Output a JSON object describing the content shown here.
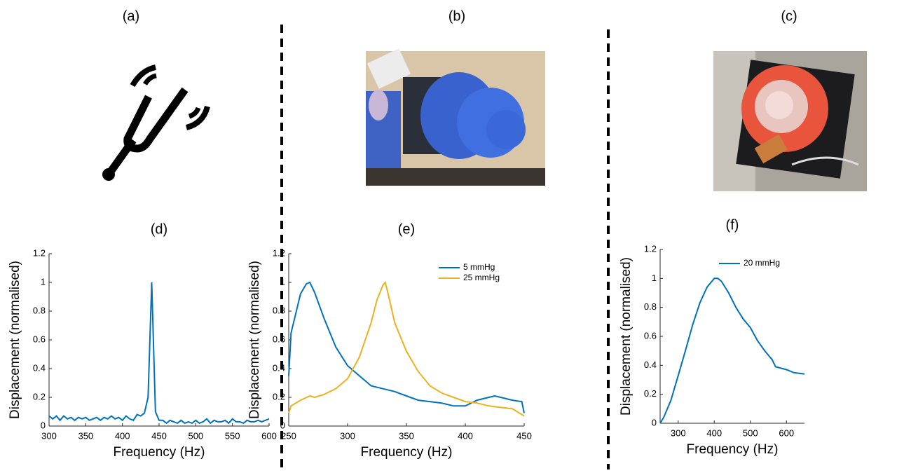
{
  "panel_labels": [
    "(a)",
    "(b)",
    "(c)"
  ],
  "chart_data": [
    {
      "type": "line",
      "title": "(d)",
      "x_label": "Frequency (Hz)",
      "y_label": "Displacement (normalised)",
      "x": [
        300,
        305,
        310,
        315,
        320,
        325,
        330,
        335,
        340,
        345,
        350,
        355,
        360,
        365,
        370,
        375,
        380,
        385,
        390,
        395,
        400,
        405,
        410,
        415,
        420,
        425,
        430,
        435,
        440,
        445,
        450,
        455,
        460,
        465,
        470,
        475,
        480,
        485,
        490,
        495,
        500,
        505,
        510,
        515,
        520,
        525,
        530,
        535,
        540,
        545,
        550,
        555,
        560,
        565,
        570,
        575,
        580,
        585,
        590,
        595,
        600
      ],
      "values": [
        0.07,
        0.05,
        0.07,
        0.04,
        0.07,
        0.05,
        0.06,
        0.04,
        0.06,
        0.05,
        0.06,
        0.04,
        0.05,
        0.06,
        0.04,
        0.06,
        0.05,
        0.07,
        0.05,
        0.06,
        0.04,
        0.07,
        0.05,
        0.04,
        0.08,
        0.07,
        0.09,
        0.2,
        1.0,
        0.1,
        0.04,
        0.04,
        0.02,
        0.04,
        0.03,
        0.02,
        0.04,
        0.02,
        0.03,
        0.02,
        0.04,
        0.02,
        0.03,
        0.05,
        0.02,
        0.04,
        0.03,
        0.03,
        0.04,
        0.02,
        0.05,
        0.03,
        0.03,
        0.02,
        0.04,
        0.03,
        0.03,
        0.04,
        0.03,
        0.04,
        0.05
      ],
      "color": "#0072bd",
      "xlim": [
        300,
        600
      ],
      "xticks": [
        300,
        350,
        400,
        450,
        500,
        550,
        600
      ],
      "ylim": [
        0,
        1.2
      ],
      "yticks": [
        0,
        0.2,
        0.4,
        0.6,
        0.8,
        1,
        1.2
      ]
    },
    {
      "type": "line",
      "title": "(e)",
      "x_label": "Frequency (Hz)",
      "y_label": "Displacement (normalised)",
      "series": [
        {
          "name": "5 mmHg",
          "color": "#0072bd",
          "x": [
            250,
            252,
            255,
            260,
            265,
            268,
            272,
            280,
            290,
            300,
            310,
            320,
            330,
            340,
            350,
            360,
            370,
            380,
            390,
            400,
            410,
            420,
            425,
            430,
            440,
            448,
            450
          ],
          "values": [
            0.35,
            0.65,
            0.75,
            0.92,
            0.99,
            1.0,
            0.93,
            0.75,
            0.55,
            0.42,
            0.35,
            0.28,
            0.26,
            0.24,
            0.21,
            0.18,
            0.17,
            0.16,
            0.14,
            0.14,
            0.18,
            0.2,
            0.21,
            0.2,
            0.18,
            0.17,
            0.09
          ]
        },
        {
          "name": "25 mmHg",
          "color": "#edb120",
          "x": [
            250,
            252,
            260,
            268,
            272,
            280,
            290,
            300,
            310,
            320,
            325,
            330,
            332,
            335,
            340,
            350,
            360,
            370,
            380,
            390,
            400,
            410,
            420,
            430,
            440,
            450
          ],
          "values": [
            0.09,
            0.14,
            0.18,
            0.21,
            0.2,
            0.22,
            0.26,
            0.33,
            0.48,
            0.72,
            0.88,
            0.98,
            1.0,
            0.9,
            0.72,
            0.52,
            0.38,
            0.28,
            0.23,
            0.2,
            0.17,
            0.16,
            0.14,
            0.13,
            0.12,
            0.07
          ]
        }
      ],
      "legend": "upper right",
      "xlim": [
        250,
        450
      ],
      "xticks": [
        250,
        300,
        350,
        400,
        450
      ],
      "ylim": [
        0,
        1.2
      ],
      "yticks": [
        0,
        0.2,
        0.4,
        0.6,
        0.8,
        1,
        1.2
      ]
    },
    {
      "type": "line",
      "title": "(f)",
      "x_label": "Frequency (Hz)",
      "y_label": "Displacement (normalised)",
      "series": [
        {
          "name": "20 mmHg",
          "color": "#0072bd",
          "x": [
            250,
            260,
            280,
            300,
            320,
            340,
            360,
            380,
            400,
            410,
            420,
            440,
            460,
            480,
            500,
            520,
            540,
            560,
            570,
            600,
            620,
            650
          ],
          "values": [
            0,
            0.04,
            0.16,
            0.33,
            0.5,
            0.68,
            0.83,
            0.94,
            1.0,
            1.0,
            0.98,
            0.9,
            0.8,
            0.72,
            0.66,
            0.57,
            0.5,
            0.44,
            0.39,
            0.37,
            0.35,
            0.34
          ]
        }
      ],
      "legend": "upper right",
      "xlim": [
        250,
        650
      ],
      "xticks": [
        300,
        400,
        500,
        600
      ],
      "ylim": [
        0,
        1.2
      ],
      "yticks": [
        0,
        0.2,
        0.4,
        0.6,
        0.8,
        1,
        1.2
      ]
    }
  ]
}
